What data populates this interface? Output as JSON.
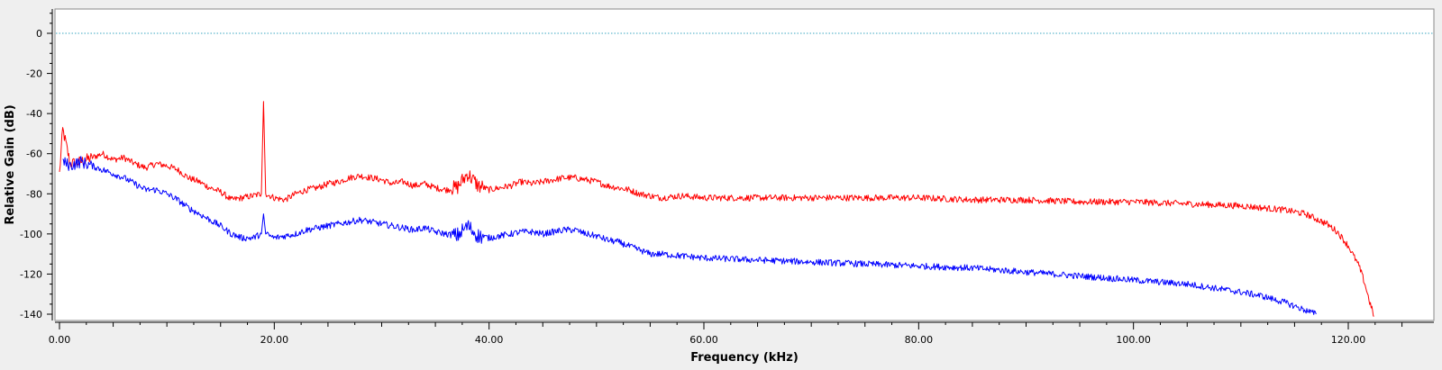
{
  "chart_data": {
    "type": "line",
    "title": "",
    "xlabel": "Frequency (kHz)",
    "ylabel": "Relative Gain (dB)",
    "xlim": [
      0,
      125
    ],
    "ylim": [
      -140,
      12
    ],
    "x_ticks": [
      0,
      20,
      40,
      60,
      80,
      100,
      120
    ],
    "x_tick_labels": [
      "0.00",
      "20.00",
      "40.00",
      "60.00",
      "80.00",
      "100.00",
      "120.00"
    ],
    "y_ticks": [
      0,
      -20,
      -40,
      -60,
      -80,
      -100,
      -120,
      -140
    ],
    "y_tick_labels": [
      "0",
      "-20",
      "-40",
      "-60",
      "-80",
      "-100",
      "-120",
      "-140"
    ],
    "reference_line": {
      "y": 0,
      "color": "#3aa6c0",
      "style": "dotted"
    },
    "grid": false,
    "legend": "none",
    "series": [
      {
        "color": "#ff0000",
        "x": [
          0,
          0.3,
          0.6,
          1,
          2,
          3,
          4,
          5,
          6,
          7,
          8,
          9,
          10,
          11,
          12,
          13,
          14,
          15,
          16,
          17,
          18,
          18.8,
          19,
          19.2,
          20,
          21,
          22,
          23,
          24,
          25,
          26,
          27,
          28,
          29,
          30,
          31,
          32,
          33,
          34,
          35,
          36,
          37,
          38,
          39,
          40,
          41,
          42,
          43,
          44,
          45,
          46,
          47,
          48,
          49,
          50,
          51,
          52,
          53,
          54,
          55,
          56,
          58,
          60,
          65,
          70,
          75,
          80,
          85,
          90,
          95,
          100,
          105,
          110,
          112,
          114,
          116,
          118,
          119,
          120,
          121,
          121.5,
          122,
          122.4
        ],
        "values": [
          -70,
          -48,
          -55,
          -65,
          -64,
          -62,
          -60,
          -63,
          -62,
          -65,
          -67,
          -65,
          -66,
          -68,
          -72,
          -74,
          -77,
          -79,
          -83,
          -82,
          -81,
          -80,
          -34,
          -80,
          -82,
          -83,
          -80,
          -78,
          -77,
          -75,
          -74,
          -72,
          -71,
          -72,
          -73,
          -75,
          -74,
          -76,
          -75,
          -77,
          -78,
          -77,
          -70,
          -76,
          -78,
          -77,
          -76,
          -74,
          -75,
          -74,
          -73,
          -72,
          -72,
          -73,
          -74,
          -76,
          -77,
          -78,
          -80,
          -81,
          -82,
          -81,
          -82,
          -82,
          -82,
          -82,
          -82,
          -83,
          -83,
          -84,
          -84,
          -85,
          -86,
          -87,
          -88,
          -90,
          -95,
          -99,
          -106,
          -116,
          -124,
          -134,
          -141
        ]
      },
      {
        "color": "#0000ff",
        "x": [
          0.3,
          1,
          2,
          3,
          4,
          5,
          6,
          7,
          8,
          9,
          10,
          11,
          12,
          13,
          14,
          15,
          16,
          17,
          18,
          18.8,
          19,
          19.2,
          20,
          21,
          22,
          23,
          24,
          25,
          26,
          27,
          28,
          29,
          30,
          31,
          32,
          33,
          34,
          35,
          36,
          37,
          38,
          39,
          40,
          41,
          42,
          43,
          44,
          45,
          46,
          47,
          48,
          49,
          50,
          51,
          52,
          53,
          54,
          55,
          56,
          58,
          60,
          65,
          70,
          75,
          80,
          85,
          90,
          95,
          100,
          105,
          110,
          112,
          114,
          116,
          117
        ],
        "values": [
          -64,
          -66,
          -64,
          -66,
          -68,
          -70,
          -72,
          -75,
          -78,
          -78,
          -80,
          -83,
          -87,
          -90,
          -93,
          -96,
          -100,
          -102,
          -102,
          -100,
          -90,
          -100,
          -102,
          -101,
          -100,
          -98,
          -97,
          -96,
          -95,
          -94,
          -93,
          -94,
          -95,
          -96,
          -97,
          -98,
          -97,
          -99,
          -100,
          -101,
          -96,
          -101,
          -102,
          -101,
          -100,
          -99,
          -99,
          -100,
          -99,
          -98,
          -98,
          -100,
          -101,
          -103,
          -104,
          -106,
          -108,
          -110,
          -110,
          -111,
          -112,
          -113,
          -114,
          -115,
          -116,
          -117,
          -119,
          -121,
          -123,
          -125,
          -129,
          -131,
          -134,
          -138,
          -140
        ]
      }
    ]
  }
}
